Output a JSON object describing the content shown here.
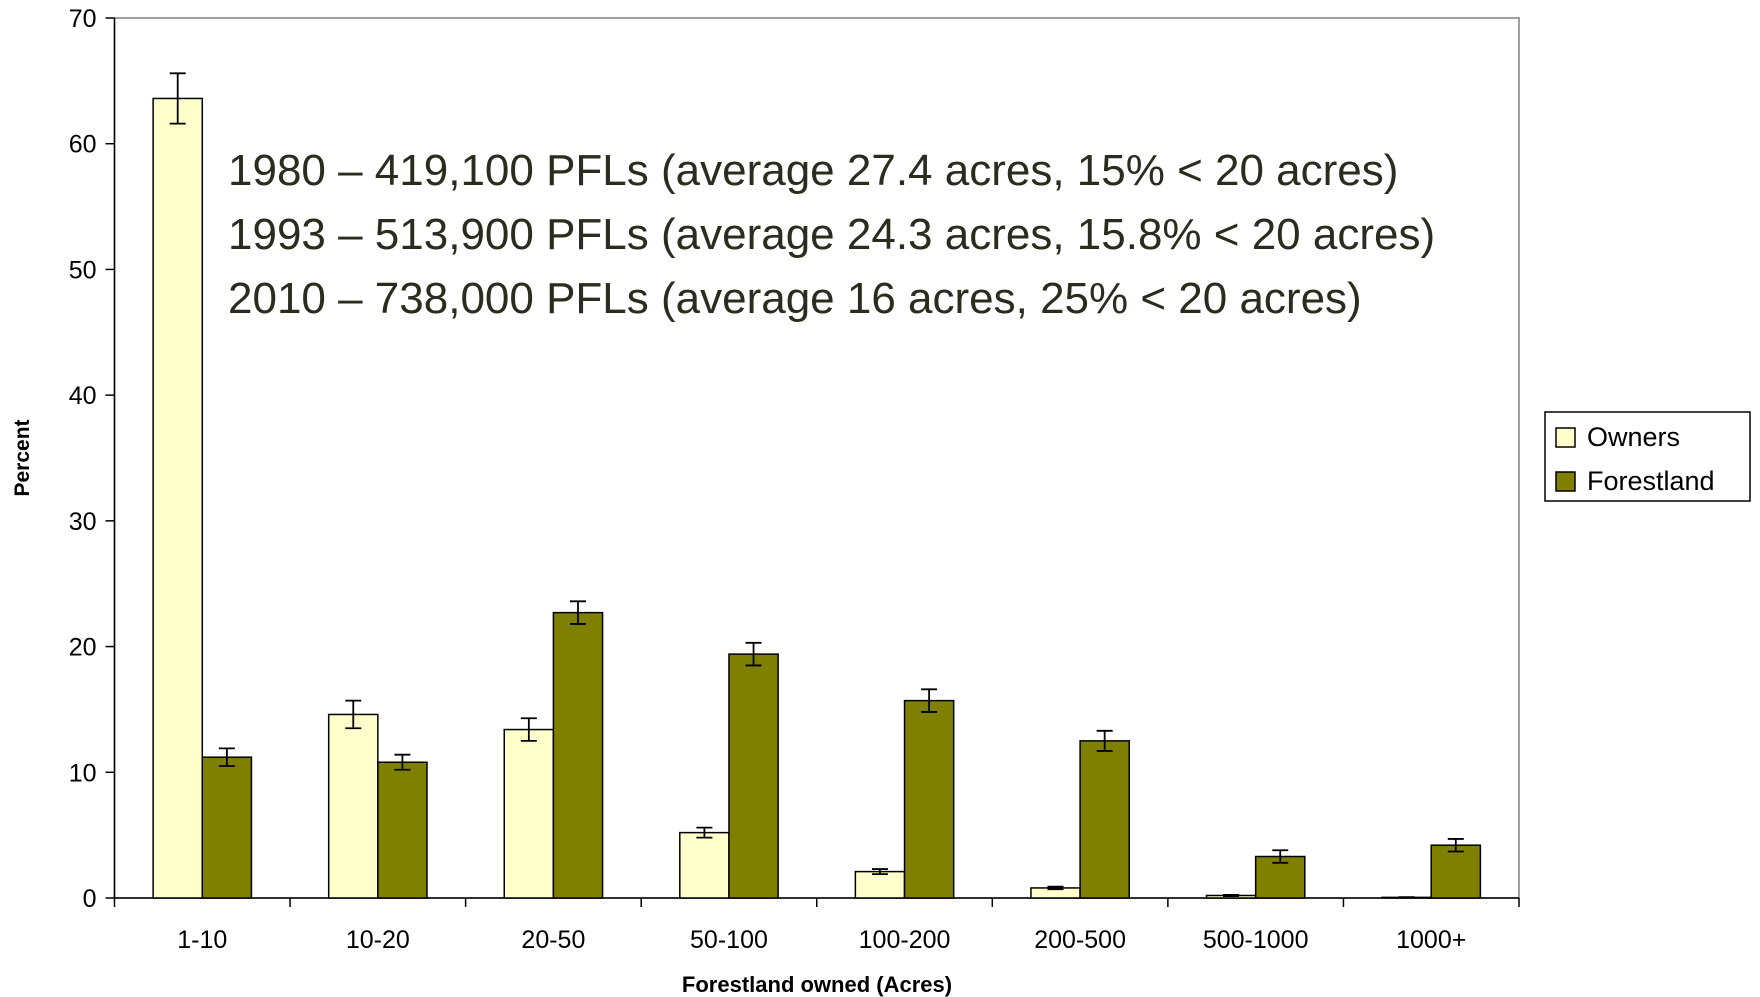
{
  "chart_data": {
    "type": "bar",
    "xlabel": "Forestland owned (Acres)",
    "ylabel": "Percent",
    "categories": [
      "1-10",
      "10-20",
      "20-50",
      "50-100",
      "100-200",
      "200-500",
      "500-1000",
      "1000+"
    ],
    "series": [
      {
        "name": "Owners",
        "color": "#ffffcc",
        "values": [
          63.6,
          14.6,
          13.4,
          5.2,
          2.1,
          0.8,
          0.2,
          0.05
        ],
        "errors": [
          2.0,
          1.1,
          0.9,
          0.4,
          0.2,
          0.1,
          0.05,
          0.02
        ]
      },
      {
        "name": "Forestland",
        "color": "#808000",
        "values": [
          11.2,
          10.8,
          22.7,
          19.4,
          15.7,
          12.5,
          3.3,
          4.2
        ],
        "errors": [
          0.7,
          0.6,
          0.9,
          0.9,
          0.9,
          0.8,
          0.5,
          0.5
        ]
      }
    ],
    "ylim": [
      0,
      70
    ],
    "yticks": [
      0,
      10,
      20,
      30,
      40,
      50,
      60,
      70
    ],
    "annotations": [
      "1980 – 419,100 PFLs (average 27.4 acres, 15% < 20 acres)",
      "1993 – 513,900 PFLs (average 24.3 acres, 15.8% < 20 acres)",
      "2010 – 738,000 PFLs (average 16 acres, 25% < 20 acres)"
    ],
    "legend": "right"
  }
}
